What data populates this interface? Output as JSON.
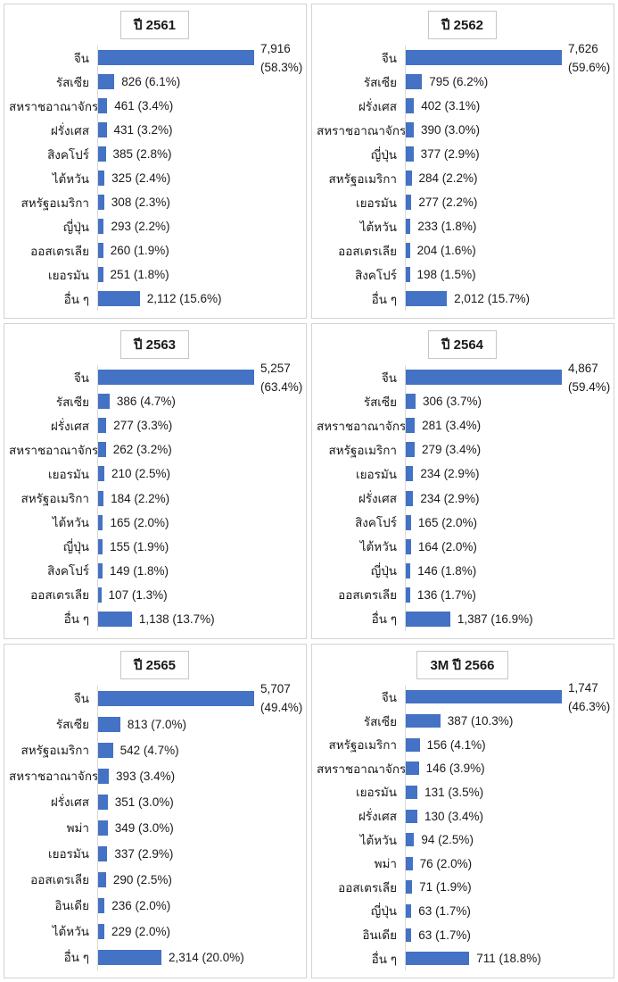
{
  "colors": {
    "bar": "#4472C4",
    "panel_border": "#d3d3d3",
    "axis_line": "#d9d9d9",
    "title_border": "#c6c6c6",
    "text": "#1a1a1a"
  },
  "chart_data": [
    {
      "type": "bar",
      "orientation": "horizontal",
      "title": "ปี 2561",
      "max_value": 7916,
      "rows": [
        {
          "category": "จีน",
          "value": 7916,
          "label_lines": [
            "7,916",
            "(58.3%)"
          ]
        },
        {
          "category": "รัสเซีย",
          "value": 826,
          "label_lines": [
            "826 (6.1%)"
          ]
        },
        {
          "category": "สหราชอาณาจักร",
          "value": 461,
          "label_lines": [
            "461 (3.4%)"
          ]
        },
        {
          "category": "ฝรั่งเศส",
          "value": 431,
          "label_lines": [
            "431 (3.2%)"
          ]
        },
        {
          "category": "สิงคโปร์",
          "value": 385,
          "label_lines": [
            "385 (2.8%)"
          ]
        },
        {
          "category": "ไต้หวัน",
          "value": 325,
          "label_lines": [
            "325 (2.4%)"
          ]
        },
        {
          "category": "สหรัฐอเมริกา",
          "value": 308,
          "label_lines": [
            "308 (2.3%)"
          ]
        },
        {
          "category": "ญี่ปุ่น",
          "value": 293,
          "label_lines": [
            "293 (2.2%)"
          ]
        },
        {
          "category": "ออสเตรเลีย",
          "value": 260,
          "label_lines": [
            "260 (1.9%)"
          ]
        },
        {
          "category": "เยอรมัน",
          "value": 251,
          "label_lines": [
            "251 (1.8%)"
          ]
        },
        {
          "category": "อื่น ๆ",
          "value": 2112,
          "label_lines": [
            "2,112 (15.6%)"
          ]
        }
      ]
    },
    {
      "type": "bar",
      "orientation": "horizontal",
      "title": "ปี 2562",
      "max_value": 7626,
      "rows": [
        {
          "category": "จีน",
          "value": 7626,
          "label_lines": [
            "7,626",
            "(59.6%)"
          ]
        },
        {
          "category": "รัสเซีย",
          "value": 795,
          "label_lines": [
            "795 (6.2%)"
          ]
        },
        {
          "category": "ฝรั่งเศส",
          "value": 402,
          "label_lines": [
            "402 (3.1%)"
          ]
        },
        {
          "category": "สหราชอาณาจักร",
          "value": 390,
          "label_lines": [
            "390 (3.0%)"
          ]
        },
        {
          "category": "ญี่ปุ่น",
          "value": 377,
          "label_lines": [
            "377 (2.9%)"
          ]
        },
        {
          "category": "สหรัฐอเมริกา",
          "value": 284,
          "label_lines": [
            "284 (2.2%)"
          ]
        },
        {
          "category": "เยอรมัน",
          "value": 277,
          "label_lines": [
            "277 (2.2%)"
          ]
        },
        {
          "category": "ไต้หวัน",
          "value": 233,
          "label_lines": [
            "233 (1.8%)"
          ]
        },
        {
          "category": "ออสเตรเลีย",
          "value": 204,
          "label_lines": [
            "204 (1.6%)"
          ]
        },
        {
          "category": "สิงคโปร์",
          "value": 198,
          "label_lines": [
            "198 (1.5%)"
          ]
        },
        {
          "category": "อื่น ๆ",
          "value": 2012,
          "label_lines": [
            "2,012 (15.7%)"
          ]
        }
      ]
    },
    {
      "type": "bar",
      "orientation": "horizontal",
      "title": "ปี 2563",
      "max_value": 5257,
      "rows": [
        {
          "category": "จีน",
          "value": 5257,
          "label_lines": [
            "5,257",
            "(63.4%)"
          ]
        },
        {
          "category": "รัสเซีย",
          "value": 386,
          "label_lines": [
            "386 (4.7%)"
          ]
        },
        {
          "category": "ฝรั่งเศส",
          "value": 277,
          "label_lines": [
            "277 (3.3%)"
          ]
        },
        {
          "category": "สหราชอาณาจักร",
          "value": 262,
          "label_lines": [
            "262 (3.2%)"
          ]
        },
        {
          "category": "เยอรมัน",
          "value": 210,
          "label_lines": [
            "210 (2.5%)"
          ]
        },
        {
          "category": "สหรัฐอเมริกา",
          "value": 184,
          "label_lines": [
            "184 (2.2%)"
          ]
        },
        {
          "category": "ไต้หวัน",
          "value": 165,
          "label_lines": [
            "165 (2.0%)"
          ]
        },
        {
          "category": "ญี่ปุ่น",
          "value": 155,
          "label_lines": [
            "155 (1.9%)"
          ]
        },
        {
          "category": "สิงคโปร์",
          "value": 149,
          "label_lines": [
            "149 (1.8%)"
          ]
        },
        {
          "category": "ออสเตรเลีย",
          "value": 107,
          "label_lines": [
            "107 (1.3%)"
          ]
        },
        {
          "category": "อื่น ๆ",
          "value": 1138,
          "label_lines": [
            "1,138 (13.7%)"
          ]
        }
      ]
    },
    {
      "type": "bar",
      "orientation": "horizontal",
      "title": "ปี 2564",
      "max_value": 4867,
      "rows": [
        {
          "category": "จีน",
          "value": 4867,
          "label_lines": [
            "4,867",
            "(59.4%)"
          ]
        },
        {
          "category": "รัสเซีย",
          "value": 306,
          "label_lines": [
            "306 (3.7%)"
          ]
        },
        {
          "category": "สหราชอาณาจักร",
          "value": 281,
          "label_lines": [
            "281 (3.4%)"
          ]
        },
        {
          "category": "สหรัฐอเมริกา",
          "value": 279,
          "label_lines": [
            "279 (3.4%)"
          ]
        },
        {
          "category": "เยอรมัน",
          "value": 234,
          "label_lines": [
            "234 (2.9%)"
          ]
        },
        {
          "category": "ฝรั่งเศส",
          "value": 234,
          "label_lines": [
            "234 (2.9%)"
          ]
        },
        {
          "category": "สิงคโปร์",
          "value": 165,
          "label_lines": [
            "165 (2.0%)"
          ]
        },
        {
          "category": "ไต้หวัน",
          "value": 164,
          "label_lines": [
            "164 (2.0%)"
          ]
        },
        {
          "category": "ญี่ปุ่น",
          "value": 146,
          "label_lines": [
            "146 (1.8%)"
          ]
        },
        {
          "category": "ออสเตรเลีย",
          "value": 136,
          "label_lines": [
            "136 (1.7%)"
          ]
        },
        {
          "category": "อื่น ๆ",
          "value": 1387,
          "label_lines": [
            "1,387 (16.9%)"
          ]
        }
      ]
    },
    {
      "type": "bar",
      "orientation": "horizontal",
      "title": "ปี 2565",
      "max_value": 5707,
      "rows": [
        {
          "category": "จีน",
          "value": 5707,
          "label_lines": [
            "5,707",
            "(49.4%)"
          ]
        },
        {
          "category": "รัสเซีย",
          "value": 813,
          "label_lines": [
            "813 (7.0%)"
          ]
        },
        {
          "category": "สหรัฐอเมริกา",
          "value": 542,
          "label_lines": [
            "542 (4.7%)"
          ]
        },
        {
          "category": "สหราชอาณาจักร",
          "value": 393,
          "label_lines": [
            "393 (3.4%)"
          ]
        },
        {
          "category": "ฝรั่งเศส",
          "value": 351,
          "label_lines": [
            "351 (3.0%)"
          ]
        },
        {
          "category": "พม่า",
          "value": 349,
          "label_lines": [
            "349 (3.0%)"
          ]
        },
        {
          "category": "เยอรมัน",
          "value": 337,
          "label_lines": [
            "337 (2.9%)"
          ]
        },
        {
          "category": "ออสเตรเลีย",
          "value": 290,
          "label_lines": [
            "290 (2.5%)"
          ]
        },
        {
          "category": "อินเดีย",
          "value": 236,
          "label_lines": [
            "236 (2.0%)"
          ]
        },
        {
          "category": "ไต้หวัน",
          "value": 229,
          "label_lines": [
            "229 (2.0%)"
          ]
        },
        {
          "category": "อื่น ๆ",
          "value": 2314,
          "label_lines": [
            "2,314 (20.0%)"
          ]
        }
      ]
    },
    {
      "type": "bar",
      "orientation": "horizontal",
      "title": "3M ปี 2566",
      "max_value": 1747,
      "rows": [
        {
          "category": "จีน",
          "value": 1747,
          "label_lines": [
            "1,747",
            "(46.3%)"
          ]
        },
        {
          "category": "รัสเซีย",
          "value": 387,
          "label_lines": [
            "387 (10.3%)"
          ]
        },
        {
          "category": "สหรัฐอเมริกา",
          "value": 156,
          "label_lines": [
            "156 (4.1%)"
          ]
        },
        {
          "category": "สหราชอาณาจักร",
          "value": 146,
          "label_lines": [
            "146 (3.9%)"
          ]
        },
        {
          "category": "เยอรมัน",
          "value": 131,
          "label_lines": [
            "131 (3.5%)"
          ]
        },
        {
          "category": "ฝรั่งเศส",
          "value": 130,
          "label_lines": [
            "130 (3.4%)"
          ]
        },
        {
          "category": "ไต้หวัน",
          "value": 94,
          "label_lines": [
            "94 (2.5%)"
          ]
        },
        {
          "category": "พม่า",
          "value": 76,
          "label_lines": [
            "76 (2.0%)"
          ]
        },
        {
          "category": "ออสเตรเลีย",
          "value": 71,
          "label_lines": [
            "71 (1.9%)"
          ]
        },
        {
          "category": "ญี่ปุ่น",
          "value": 63,
          "label_lines": [
            "63 (1.7%)"
          ]
        },
        {
          "category": "อินเดีย",
          "value": 63,
          "label_lines": [
            "63 (1.7%)"
          ]
        },
        {
          "category": "อื่น ๆ",
          "value": 711,
          "label_lines": [
            "711 (18.8%)"
          ]
        }
      ]
    }
  ]
}
